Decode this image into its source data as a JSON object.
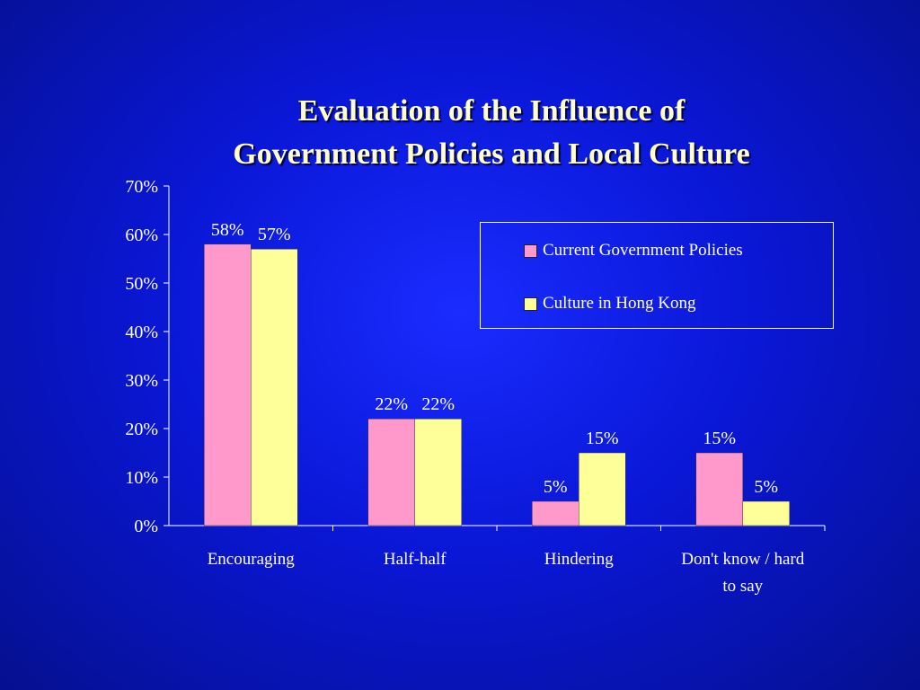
{
  "title": {
    "line1": "Evaluation of the Influence of",
    "line2": "Government Policies and Local Culture"
  },
  "chart_data": {
    "type": "bar",
    "title": "Evaluation of the Influence of Government Policies and Local Culture",
    "xlabel": "",
    "ylabel": "",
    "categories": [
      [
        "Encouraging"
      ],
      [
        "Half-half"
      ],
      [
        "Hindering"
      ],
      [
        "Don't know / hard",
        "to say"
      ]
    ],
    "series": [
      {
        "name": "Current Government Policies",
        "color": "#ff99cc",
        "values": [
          58,
          22,
          5,
          15
        ],
        "labels": [
          "58%",
          "22%",
          "5%",
          "15%"
        ]
      },
      {
        "name": "Culture in Hong Kong",
        "color": "#ffff99",
        "values": [
          57,
          22,
          15,
          5
        ],
        "labels": [
          "57%",
          "22%",
          "15%",
          "5%"
        ]
      }
    ],
    "ylim": [
      0,
      70
    ],
    "yticks": [
      "0%",
      "10%",
      "20%",
      "30%",
      "40%",
      "50%",
      "60%",
      "70%"
    ],
    "grid": false,
    "legend_position": "top-right",
    "colors": {
      "axis": "#ffffff",
      "labels": "#ffffff",
      "title": "#ffffcc"
    }
  }
}
